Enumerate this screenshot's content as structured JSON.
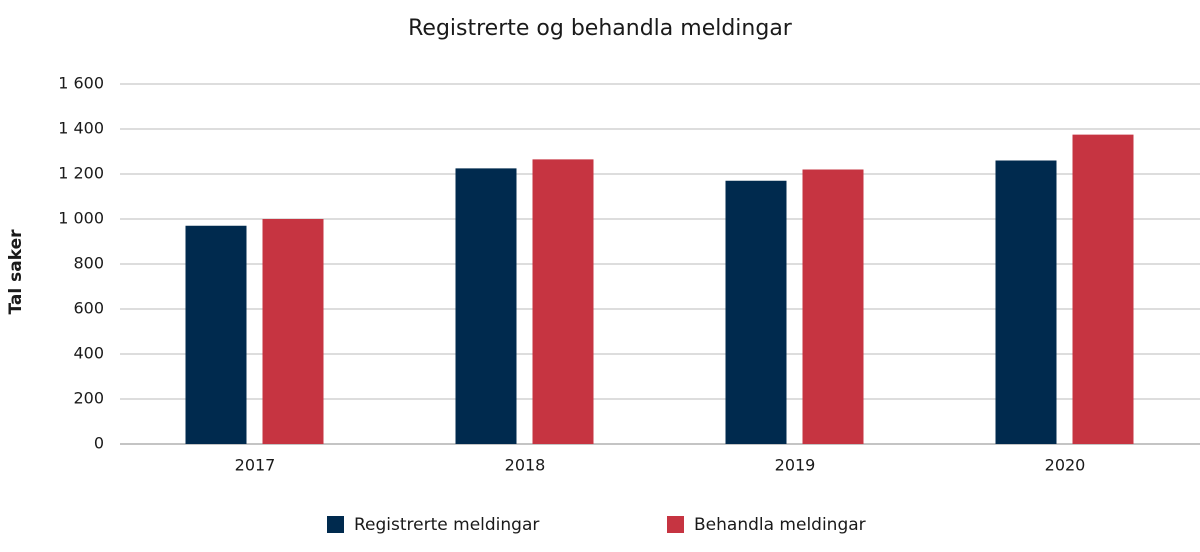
{
  "chart_data": {
    "type": "bar",
    "title": "Registrerte og behandla meldingar",
    "y_label": "Tal saker",
    "categories": [
      "2017",
      "2018",
      "2019",
      "2020"
    ],
    "series": [
      {
        "name": "Registrerte meldingar",
        "color": "#002a4e",
        "values": [
          970,
          1225,
          1170,
          1260
        ]
      },
      {
        "name": "Behandla meldingar",
        "color": "#c63441",
        "values": [
          1000,
          1265,
          1220,
          1375
        ]
      }
    ],
    "ylim": [
      0,
      1600
    ],
    "yticks": [
      0,
      200,
      400,
      600,
      800,
      {
        "value": 1000,
        "label": "1 000"
      },
      {
        "value": 1200,
        "label": "1 200"
      },
      {
        "value": 1400,
        "label": "1 400"
      },
      {
        "value": 1600,
        "label": "1 600"
      }
    ],
    "grid": true,
    "legend": "bottom"
  }
}
